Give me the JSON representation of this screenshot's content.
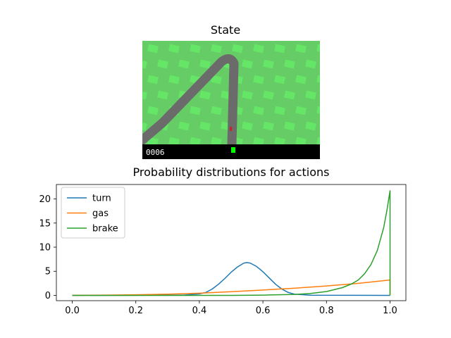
{
  "state_panel": {
    "title": "State",
    "score": "0006",
    "colors": {
      "grass": "#66cc66",
      "grass_tile": "#66e666",
      "road": "#6b6b6b",
      "hud": "#000000",
      "indicator": "#00ff00"
    }
  },
  "chart_data": {
    "type": "line",
    "title": "Probability distributions for actions",
    "xlabel": "",
    "ylabel": "",
    "xlim": [
      -0.05,
      1.05
    ],
    "ylim": [
      -1.1,
      23.0
    ],
    "xticks": [
      "0.0",
      "0.2",
      "0.4",
      "0.6",
      "0.8",
      "1.0"
    ],
    "yticks": [
      "0",
      "5",
      "10",
      "15",
      "20"
    ],
    "grid": false,
    "legend": "top-left",
    "series": [
      {
        "name": "turn",
        "color": "#1f77b4",
        "x": [
          0.0,
          0.35,
          0.4,
          0.42,
          0.44,
          0.46,
          0.48,
          0.5,
          0.52,
          0.54,
          0.55,
          0.56,
          0.58,
          0.6,
          0.62,
          0.64,
          0.66,
          0.68,
          0.7,
          0.75,
          1.0
        ],
        "y": [
          0.0,
          0.05,
          0.3,
          0.6,
          1.3,
          2.3,
          3.5,
          4.8,
          5.9,
          6.7,
          6.8,
          6.7,
          6.0,
          4.9,
          3.6,
          2.3,
          1.3,
          0.6,
          0.25,
          0.03,
          0.0
        ]
      },
      {
        "name": "gas",
        "color": "#ff7f0e",
        "x": [
          0.0,
          0.1,
          0.2,
          0.3,
          0.4,
          0.5,
          0.6,
          0.7,
          0.8,
          0.9,
          1.0,
          1.0
        ],
        "y": [
          0.0,
          0.05,
          0.12,
          0.25,
          0.45,
          0.75,
          1.1,
          1.5,
          1.95,
          2.5,
          3.2,
          0.0
        ]
      },
      {
        "name": "brake",
        "color": "#2ca02c",
        "x": [
          0.0,
          0.5,
          0.6,
          0.7,
          0.75,
          0.8,
          0.85,
          0.88,
          0.9,
          0.92,
          0.94,
          0.96,
          0.98,
          0.99,
          1.0,
          1.0
        ],
        "y": [
          0.0,
          0.0,
          0.05,
          0.2,
          0.4,
          0.8,
          1.6,
          2.4,
          3.2,
          4.5,
          6.4,
          9.3,
          14.0,
          17.5,
          21.7,
          0.0
        ]
      }
    ]
  }
}
